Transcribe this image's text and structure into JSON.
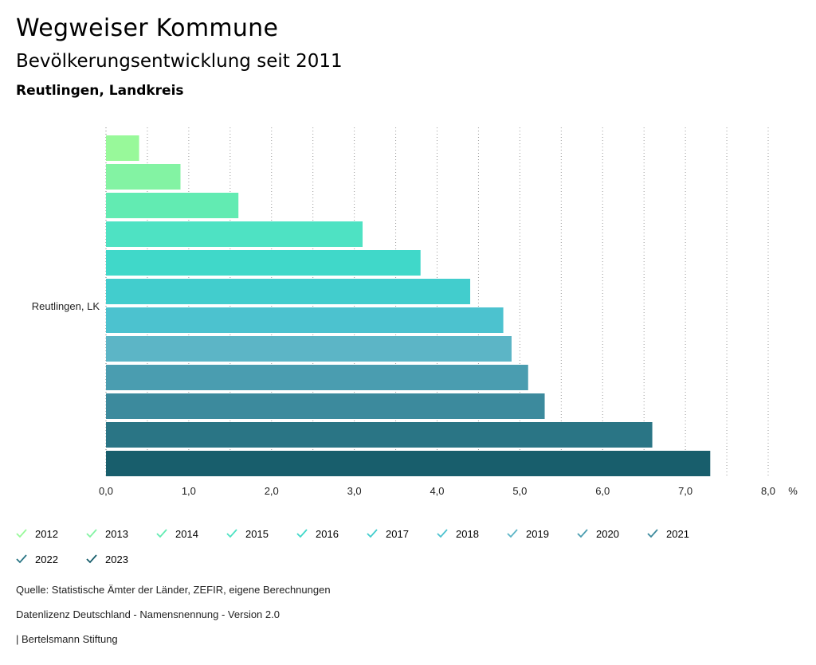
{
  "header": {
    "title": "Wegweiser Kommune",
    "subtitle": "Bevölkerungsentwicklung seit 2011",
    "region": "Reutlingen, Landkreis"
  },
  "chart_data": {
    "type": "bar",
    "orientation": "horizontal",
    "categories": [
      "Reutlingen, LK"
    ],
    "series": [
      {
        "name": "2012",
        "values": [
          0.4
        ],
        "color": "#98f99a"
      },
      {
        "name": "2013",
        "values": [
          0.9
        ],
        "color": "#83f3a3"
      },
      {
        "name": "2014",
        "values": [
          1.6
        ],
        "color": "#62ebb2"
      },
      {
        "name": "2015",
        "values": [
          3.1
        ],
        "color": "#4ee2c3"
      },
      {
        "name": "2016",
        "values": [
          3.8
        ],
        "color": "#40d8c9"
      },
      {
        "name": "2017",
        "values": [
          4.4
        ],
        "color": "#42cdcd"
      },
      {
        "name": "2018",
        "values": [
          4.8
        ],
        "color": "#4cc2cf"
      },
      {
        "name": "2019",
        "values": [
          4.9
        ],
        "color": "#5cb5c6"
      },
      {
        "name": "2020",
        "values": [
          5.1
        ],
        "color": "#4a9db0"
      },
      {
        "name": "2021",
        "values": [
          5.3
        ],
        "color": "#3c8a9d"
      },
      {
        "name": "2022",
        "values": [
          6.6
        ],
        "color": "#2a7585"
      },
      {
        "name": "2023",
        "values": [
          7.3
        ],
        "color": "#185e6c"
      }
    ],
    "xlim": [
      0,
      8
    ],
    "xticks": [
      "0,0",
      "1,0",
      "2,0",
      "3,0",
      "4,0",
      "5,0",
      "6,0",
      "7,0",
      "8,0"
    ],
    "xunit": "%",
    "grid": true,
    "legend_position": "bottom"
  },
  "footer": {
    "source": "Quelle: Statistische Ämter der Länder, ZEFIR, eigene Berechnungen",
    "license": "Datenlizenz Deutschland - Namensnennung - Version 2.0",
    "credit": "| Bertelsmann Stiftung"
  }
}
